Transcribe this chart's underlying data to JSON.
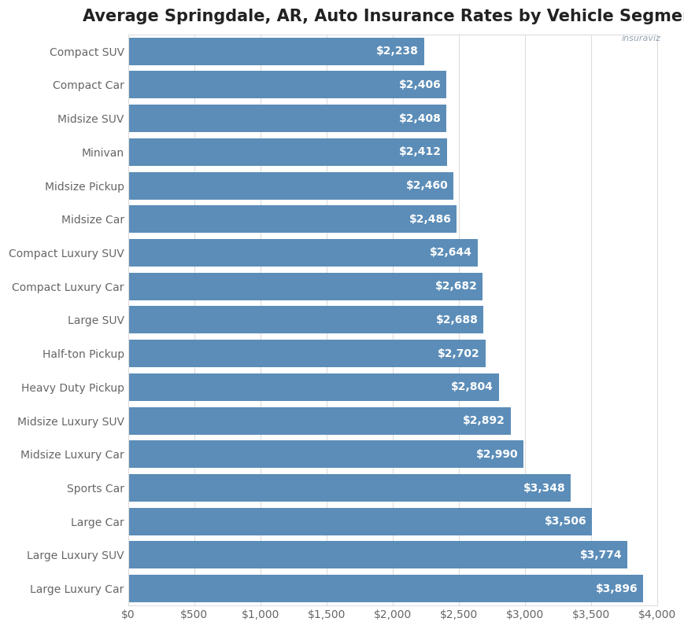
{
  "title": "Average Springdale, AR, Auto Insurance Rates by Vehicle Segment",
  "categories": [
    "Large Luxury Car",
    "Large Luxury SUV",
    "Large Car",
    "Sports Car",
    "Midsize Luxury Car",
    "Midsize Luxury SUV",
    "Heavy Duty Pickup",
    "Half-ton Pickup",
    "Large SUV",
    "Compact Luxury Car",
    "Compact Luxury SUV",
    "Midsize Car",
    "Midsize Pickup",
    "Minivan",
    "Midsize SUV",
    "Compact Car",
    "Compact SUV"
  ],
  "values": [
    3896,
    3774,
    3506,
    3348,
    2990,
    2892,
    2804,
    2702,
    2688,
    2682,
    2644,
    2486,
    2460,
    2412,
    2408,
    2406,
    2238
  ],
  "bar_color": "#5b8db8",
  "label_color": "#ffffff",
  "background_color": "#ffffff",
  "title_fontsize": 15,
  "label_fontsize": 10,
  "tick_fontsize": 10,
  "ytick_color": "#666666",
  "xtick_color": "#666666",
  "xlim": [
    0,
    4000
  ],
  "xtick_values": [
    0,
    500,
    1000,
    1500,
    2000,
    2500,
    3000,
    3500,
    4000
  ],
  "xtick_labels": [
    "$0",
    "$500",
    "$1,000",
    "$1,500",
    "$2,000",
    "$2,500",
    "$3,000",
    "$3,500",
    "$4,000"
  ],
  "grid_color": "#dddddd",
  "bar_height": 0.82
}
